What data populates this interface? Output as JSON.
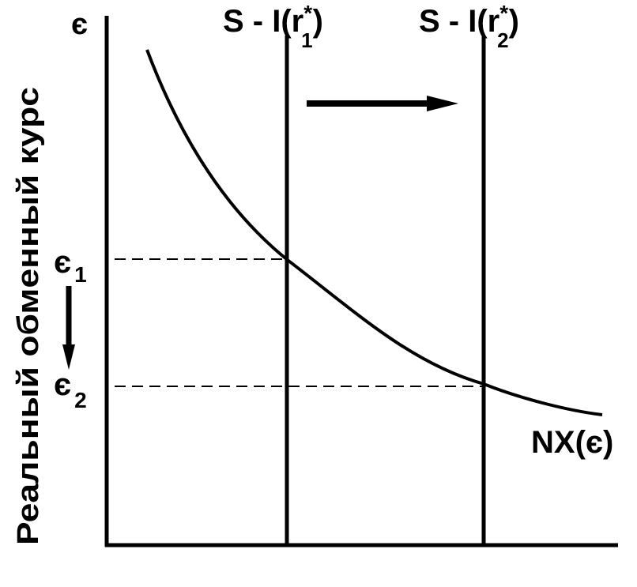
{
  "diagram": {
    "y_axis_symbol": "є",
    "y_axis_label": "Реальный обменный курс",
    "level_1": {
      "symbol": "є",
      "subscript": "1"
    },
    "level_2": {
      "symbol": "є",
      "subscript": "2"
    },
    "supply_line_1": {
      "prefix": "S - I(r",
      "star": "*",
      "subscript": "1",
      "suffix": ")"
    },
    "supply_line_2": {
      "prefix": "S - I(r",
      "star": "*",
      "subscript": "2",
      "suffix": ")"
    },
    "curve_label": "NX(є)",
    "colors": {
      "ink": "#000000",
      "background": "#ffffff"
    },
    "shift_arrow_direction": "right",
    "level_arrow_direction": "down"
  }
}
